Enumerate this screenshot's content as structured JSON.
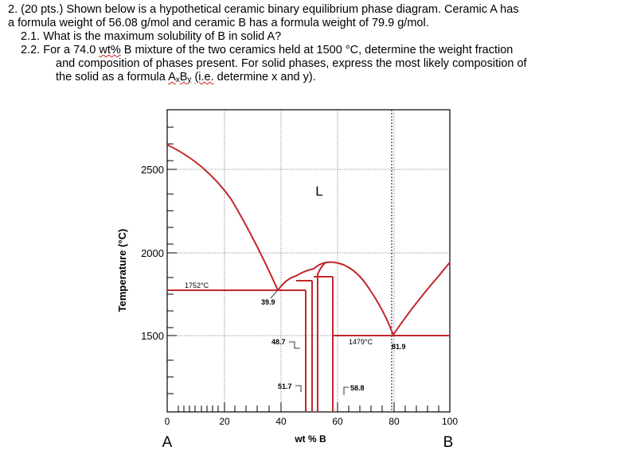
{
  "problem": {
    "header": "2. (20 pts.) Shown below is a hypothetical ceramic binary equilibrium phase diagram. Ceramic A has",
    "header_cont": "a formula weight of 56.08 g/mol and ceramic B has a formula weight of 79.9 g/mol.",
    "q1": "2.1. What is the maximum solubility of B in solid A?",
    "q2_line1_pre": "2.2. For a 74.0 ",
    "q2_line1_wt": "wt%",
    "q2_line1_post": " B mixture of the two ceramics held at 1500 °C, determine the weight fraction",
    "q2_line2": "and composition of phases present. For solid phases, express the most likely composition of",
    "q2_line3_pre": "the solid as a formula ",
    "q2_formula_a": "A",
    "q2_formula_x": "x",
    "q2_formula_b": "B",
    "q2_formula_y": "y",
    "q2_ie": "(i.e.",
    "q2_line3_post": " determine x and y)."
  },
  "diagram": {
    "ylabel": "Temperature (°C)",
    "xlabel": "wt % B",
    "y_ticks": [
      "2500",
      "2000",
      "1500"
    ],
    "x_ticks": [
      "0",
      "20",
      "40",
      "60",
      "80",
      "100"
    ],
    "end_labels": {
      "left": "A",
      "right": "B"
    },
    "phase_label": "L",
    "annotations": {
      "t1752": "1752°C",
      "c399": "39.9",
      "c487": "48.7",
      "c517": "51.7",
      "t1479": "1479°C",
      "c588": "58.8",
      "c819": "81.9"
    },
    "colors": {
      "line": "#c0282c",
      "axis": "#000000",
      "grid": "#777777"
    }
  }
}
